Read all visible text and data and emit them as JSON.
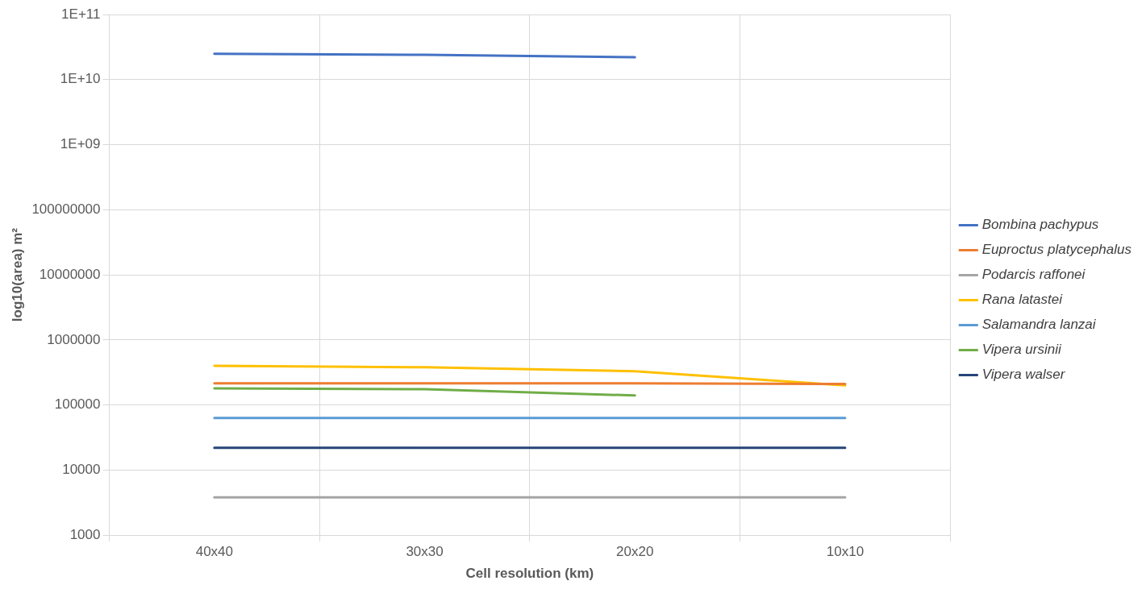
{
  "chart_data": {
    "type": "line",
    "xlabel": "Cell resolution (km)",
    "ylabel": "log10(area) m²",
    "categories": [
      "40x40",
      "30x30",
      "20x20",
      "10x10"
    ],
    "series": [
      {
        "name": "Bombina pachypus",
        "color": "#4472c4",
        "values": [
          25000000000,
          24000000000,
          22000000000,
          null
        ]
      },
      {
        "name": "Euproctus platycephalus",
        "color": "#ed7d31",
        "values": [
          215000,
          215000,
          215000,
          210000
        ]
      },
      {
        "name": "Podarcis raffonei",
        "color": "#a5a5a5",
        "values": [
          3800,
          3800,
          3800,
          3800
        ]
      },
      {
        "name": "Rana latastei",
        "color": "#ffc000",
        "values": [
          400000,
          380000,
          330000,
          200000
        ]
      },
      {
        "name": "Salamandra lanzai",
        "color": "#5b9bd5",
        "values": [
          63000,
          63000,
          63000,
          63000
        ]
      },
      {
        "name": "Vipera ursinii",
        "color": "#70ad47",
        "values": [
          180000,
          175000,
          140000,
          null
        ]
      },
      {
        "name": "Vipera walser",
        "color": "#264478",
        "values": [
          22000,
          22000,
          22000,
          22000
        ]
      }
    ],
    "log": "y",
    "ylim": [
      1000,
      100000000000
    ],
    "yticks": [
      1000,
      10000,
      100000,
      1000000,
      10000000,
      100000000,
      {
        "value": 1000000000,
        "label": "1E+09"
      },
      {
        "value": 10000000000,
        "label": "1E+10"
      },
      {
        "value": 100000000000,
        "label": "1E+11"
      }
    ],
    "grid": true,
    "legend": "right",
    "marker": "none",
    "line_style": "solid"
  }
}
